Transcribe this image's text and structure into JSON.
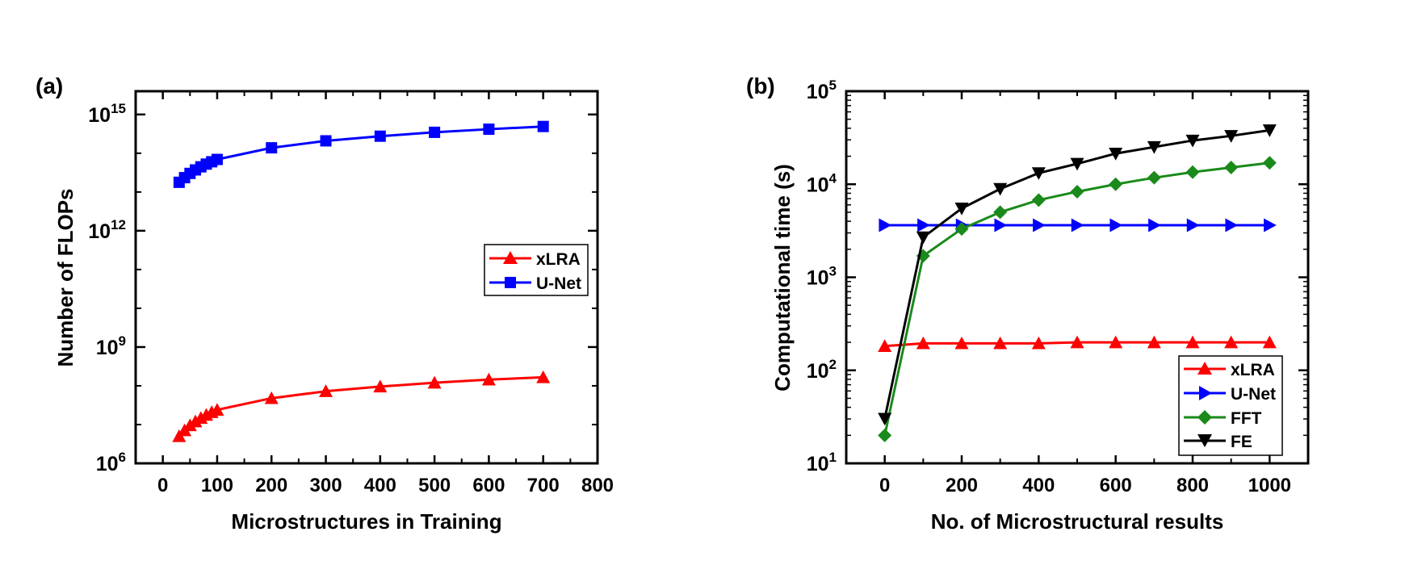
{
  "chart_data": [
    {
      "panel_label": "(a)",
      "type": "line",
      "title": "",
      "xlabel": "Microstructures in Training",
      "ylabel": "Number of FLOPs",
      "x_ticks": [
        0,
        100,
        200,
        300,
        400,
        500,
        600,
        700,
        800
      ],
      "x_tick_labels": [
        "0",
        "100",
        "200",
        "300",
        "400",
        "500",
        "600",
        "700",
        "800"
      ],
      "xlim": [
        -50,
        800
      ],
      "y_scale": "log",
      "ylim_log10": [
        6,
        15.6
      ],
      "y_ticks_log10": [
        6,
        9,
        12,
        15
      ],
      "y_tick_labels": [
        {
          "base": "10",
          "exp": "6"
        },
        {
          "base": "10",
          "exp": "9"
        },
        {
          "base": "10",
          "exp": "12"
        },
        {
          "base": "10",
          "exp": "15"
        }
      ],
      "legend_position": "center-right",
      "series": [
        {
          "name": "xLRA",
          "color": "#ff0000",
          "marker": "triangle-up",
          "x": [
            30,
            40,
            50,
            60,
            70,
            80,
            90,
            100,
            200,
            300,
            400,
            500,
            600,
            700
          ],
          "log10_y": [
            6.7,
            6.85,
            6.98,
            7.08,
            7.17,
            7.25,
            7.32,
            7.38,
            7.68,
            7.86,
            7.98,
            8.08,
            8.16,
            8.22
          ]
        },
        {
          "name": "U-Net",
          "color": "#0000ff",
          "marker": "square",
          "x": [
            30,
            40,
            50,
            60,
            70,
            80,
            90,
            100,
            200,
            300,
            400,
            500,
            600,
            700
          ],
          "log10_y": [
            13.25,
            13.37,
            13.48,
            13.57,
            13.65,
            13.72,
            13.78,
            13.84,
            14.14,
            14.32,
            14.44,
            14.54,
            14.62,
            14.69
          ]
        }
      ]
    },
    {
      "panel_label": "(b)",
      "type": "line",
      "title": "",
      "xlabel": "No. of Microstructural results",
      "ylabel": "Computational time (s)",
      "x_ticks": [
        0,
        200,
        400,
        600,
        800,
        1000
      ],
      "x_tick_labels": [
        "0",
        "200",
        "400",
        "600",
        "800",
        "1000"
      ],
      "xlim": [
        -100,
        1100
      ],
      "y_scale": "log",
      "ylim_log10": [
        1,
        5
      ],
      "y_ticks_log10": [
        1,
        2,
        3,
        4,
        5
      ],
      "y_tick_labels": [
        {
          "base": "10",
          "exp": "1"
        },
        {
          "base": "10",
          "exp": "2"
        },
        {
          "base": "10",
          "exp": "3"
        },
        {
          "base": "10",
          "exp": "4"
        },
        {
          "base": "10",
          "exp": "5"
        }
      ],
      "legend_position": "bottom-right",
      "series": [
        {
          "name": "xLRA",
          "color": "#ff0000",
          "marker": "triangle-up",
          "x": [
            0,
            100,
            200,
            300,
            400,
            500,
            600,
            700,
            800,
            900,
            1000
          ],
          "log10_y": [
            2.26,
            2.29,
            2.29,
            2.29,
            2.29,
            2.3,
            2.3,
            2.3,
            2.3,
            2.3,
            2.3
          ]
        },
        {
          "name": "U-Net",
          "color": "#0000ff",
          "marker": "triangle-right",
          "x": [
            0,
            100,
            200,
            300,
            400,
            500,
            600,
            700,
            800,
            900,
            1000
          ],
          "log10_y": [
            3.56,
            3.56,
            3.56,
            3.56,
            3.56,
            3.56,
            3.56,
            3.56,
            3.56,
            3.56,
            3.56
          ]
        },
        {
          "name": "FFT",
          "color": "#1a8a1a",
          "marker": "diamond",
          "x": [
            0,
            100,
            200,
            300,
            400,
            500,
            600,
            700,
            800,
            900,
            1000
          ],
          "log10_y": [
            1.3,
            3.23,
            3.52,
            3.7,
            3.83,
            3.92,
            4.0,
            4.07,
            4.13,
            4.18,
            4.23
          ]
        },
        {
          "name": "FE",
          "color": "#000000",
          "marker": "triangle-down",
          "x": [
            0,
            100,
            200,
            300,
            400,
            500,
            600,
            700,
            800,
            900,
            1000
          ],
          "log10_y": [
            1.48,
            3.43,
            3.74,
            3.95,
            4.12,
            4.22,
            4.33,
            4.4,
            4.47,
            4.52,
            4.58
          ]
        }
      ]
    }
  ]
}
